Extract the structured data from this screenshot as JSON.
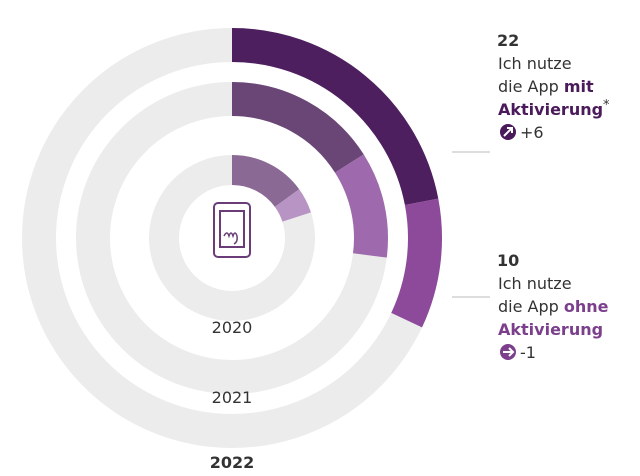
{
  "chart_data": {
    "type": "radial",
    "categories": [
      "2020",
      "2021",
      "2022"
    ],
    "track_color": "#ececec",
    "series": [
      {
        "colors": [
          "#8a6a95",
          "#6a4677",
          "#4e1f5f"
        ],
        "values": [
          15,
          16,
          22
        ],
        "label_lines": [
          "Ich nutze",
          "die App ",
          "mit",
          "Aktivierung",
          "*"
        ],
        "change": {
          "value": 6,
          "label": "+6"
        },
        "text_color": "#4a1a5a"
      },
      {
        "colors": [
          "#b894c4",
          "#9e6aad",
          "#8e4a9a"
        ],
        "values": [
          5,
          11,
          10
        ],
        "label_lines": [
          "Ich nutze",
          "die App ",
          "ohne",
          "Aktivierung"
        ],
        "change": -1,
        "text_color": "#7b3f8c"
      }
    ]
  }
}
